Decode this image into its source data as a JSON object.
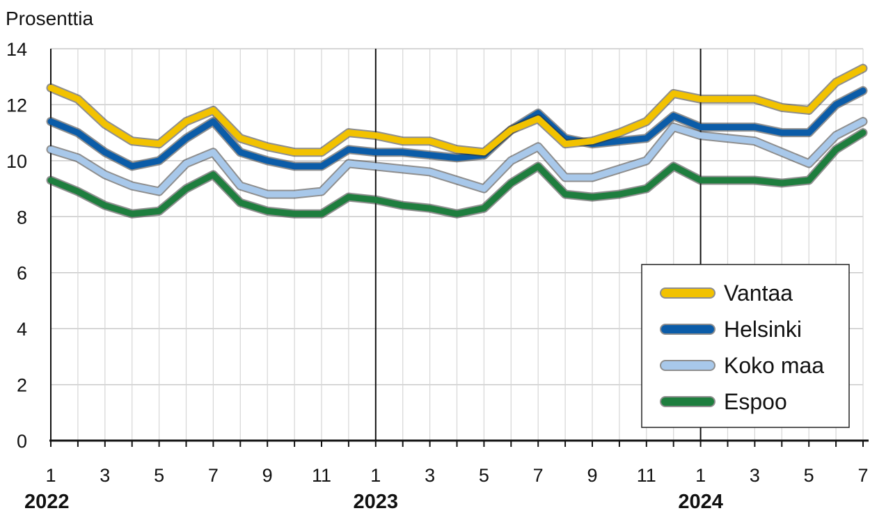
{
  "chart_data": {
    "type": "line",
    "ylabel": "Prosenttia",
    "ylim": [
      0,
      14
    ],
    "yticks": [
      "0",
      "2",
      "4",
      "6",
      "8",
      "10",
      "12",
      "14"
    ],
    "xlim": [
      1,
      31
    ],
    "xtick_positions": [
      1,
      3,
      5,
      7,
      9,
      11,
      13,
      15,
      17,
      19,
      21,
      23,
      25,
      27,
      29,
      31
    ],
    "xtick_labels": [
      "1",
      "3",
      "5",
      "7",
      "9",
      "11",
      "1",
      "3",
      "5",
      "7",
      "9",
      "11",
      "1",
      "3",
      "5",
      "7"
    ],
    "years": [
      {
        "label": "2022",
        "x": 1
      },
      {
        "label": "2023",
        "x": 13
      },
      {
        "label": "2024",
        "x": 25
      }
    ],
    "grid": true,
    "legend_position": "bottom-right",
    "x": [
      1,
      2,
      3,
      4,
      5,
      6,
      7,
      8,
      9,
      10,
      11,
      12,
      13,
      14,
      15,
      16,
      17,
      18,
      19,
      20,
      21,
      22,
      23,
      24,
      25,
      26,
      27,
      28,
      29,
      30,
      31
    ],
    "series": [
      {
        "name": "Vantaa",
        "color": "#f2c200",
        "values": [
          12.6,
          12.2,
          11.3,
          10.7,
          10.6,
          11.4,
          11.8,
          10.8,
          10.5,
          10.3,
          10.3,
          11.0,
          10.9,
          10.7,
          10.7,
          10.4,
          10.3,
          11.1,
          11.5,
          10.6,
          10.7,
          11.0,
          11.4,
          12.4,
          12.2,
          12.2,
          12.2,
          11.9,
          11.8,
          12.8,
          13.3
        ]
      },
      {
        "name": "Helsinki",
        "color": "#0b5ca8",
        "values": [
          11.4,
          11.0,
          10.3,
          9.8,
          10.0,
          10.8,
          11.4,
          10.3,
          10.0,
          9.8,
          9.8,
          10.4,
          10.3,
          10.3,
          10.2,
          10.1,
          10.2,
          11.1,
          11.7,
          10.8,
          10.6,
          10.7,
          10.8,
          11.6,
          11.2,
          11.2,
          11.2,
          11.0,
          11.0,
          12.0,
          12.5
        ]
      },
      {
        "name": "Koko maa",
        "color": "#a8c8ea",
        "values": [
          10.4,
          10.1,
          9.5,
          9.1,
          8.9,
          9.9,
          10.3,
          9.1,
          8.8,
          8.8,
          8.9,
          9.9,
          9.8,
          9.7,
          9.6,
          9.3,
          9.0,
          10.0,
          10.5,
          9.4,
          9.4,
          9.7,
          10.0,
          11.2,
          10.9,
          10.8,
          10.7,
          10.3,
          9.9,
          10.9,
          11.4
        ]
      },
      {
        "name": "Espoo",
        "color": "#1e7e3e",
        "values": [
          9.3,
          8.9,
          8.4,
          8.1,
          8.2,
          9.0,
          9.5,
          8.5,
          8.2,
          8.1,
          8.1,
          8.7,
          8.6,
          8.4,
          8.3,
          8.1,
          8.3,
          9.2,
          9.8,
          8.8,
          8.7,
          8.8,
          9.0,
          9.8,
          9.3,
          9.3,
          9.3,
          9.2,
          9.3,
          10.4,
          11.0
        ]
      }
    ]
  }
}
